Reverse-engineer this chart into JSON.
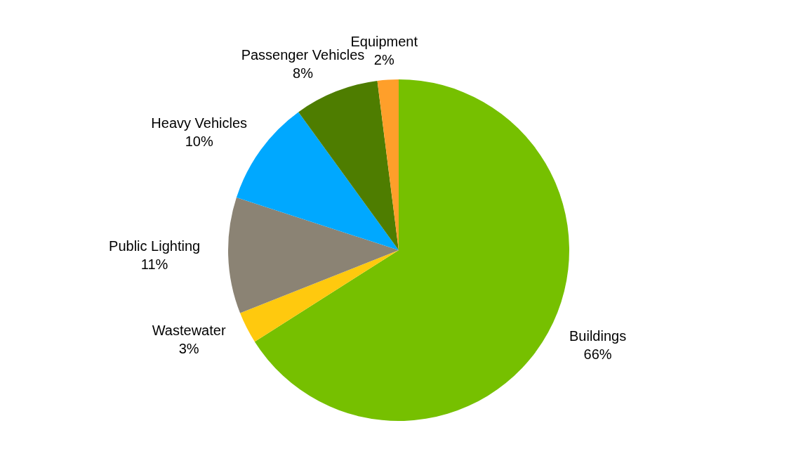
{
  "chart_data": {
    "type": "pie",
    "categories": [
      "Buildings",
      "Wastewater",
      "Public Lighting",
      "Heavy Vehicles",
      "Passenger Vehicles",
      "Equipment"
    ],
    "values": [
      66,
      3,
      11,
      10,
      8,
      2
    ],
    "colors": [
      "#76c000",
      "#ffc90e",
      "#8b8374",
      "#00a8ff",
      "#4e7d00",
      "#ff9f2a"
    ],
    "value_labels": [
      "66%",
      "3%",
      "11%",
      "10%",
      "8%",
      "2%"
    ],
    "legend": false
  }
}
